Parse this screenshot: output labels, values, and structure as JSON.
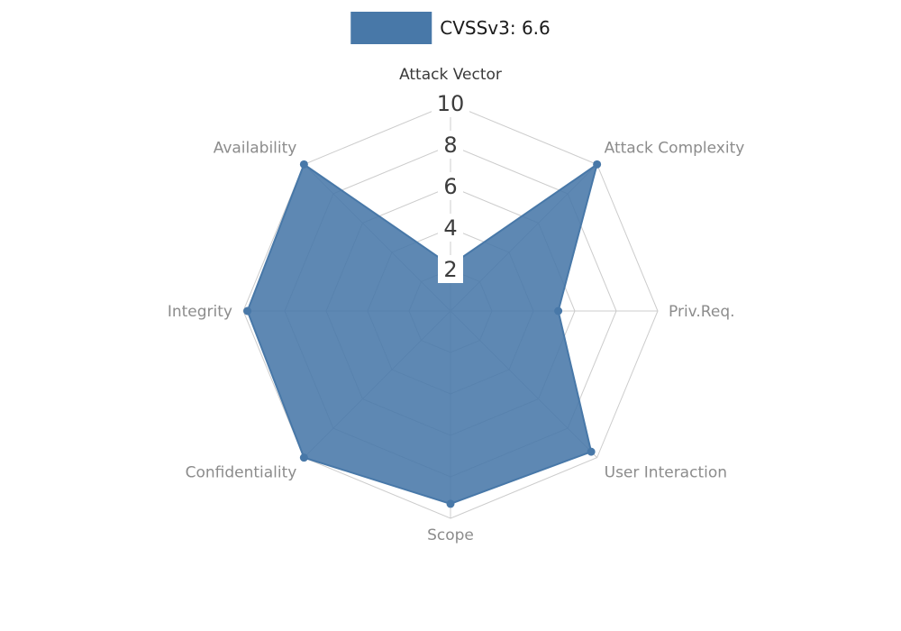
{
  "legend": {
    "label": "CVSSv3: 6.6",
    "swatch_color": "#4878a8"
  },
  "chart_data": {
    "type": "radar",
    "title": "CVSSv3: 6.6",
    "categories": [
      "Attack Vector",
      "Attack Complexity",
      "Priv.Req.",
      "User Interaction",
      "Scope",
      "Confidentiality",
      "Integrity",
      "Availability"
    ],
    "series": [
      {
        "name": "CVSSv3: 6.6",
        "values": [
          2.2,
          10,
          5.2,
          9.6,
          9.3,
          10,
          9.8,
          10
        ]
      }
    ],
    "radial_ticks": [
      2,
      4,
      6,
      8,
      10
    ],
    "rmax": 10,
    "grid": true,
    "legend_position": "top-center",
    "fill_color": "#4878a8",
    "grid_color": "#cccccc",
    "tick_label_color": "#3c3c3c",
    "axis_label_color": "#8c8c8c",
    "primary_axis_label_color": "#3a3a3a"
  }
}
